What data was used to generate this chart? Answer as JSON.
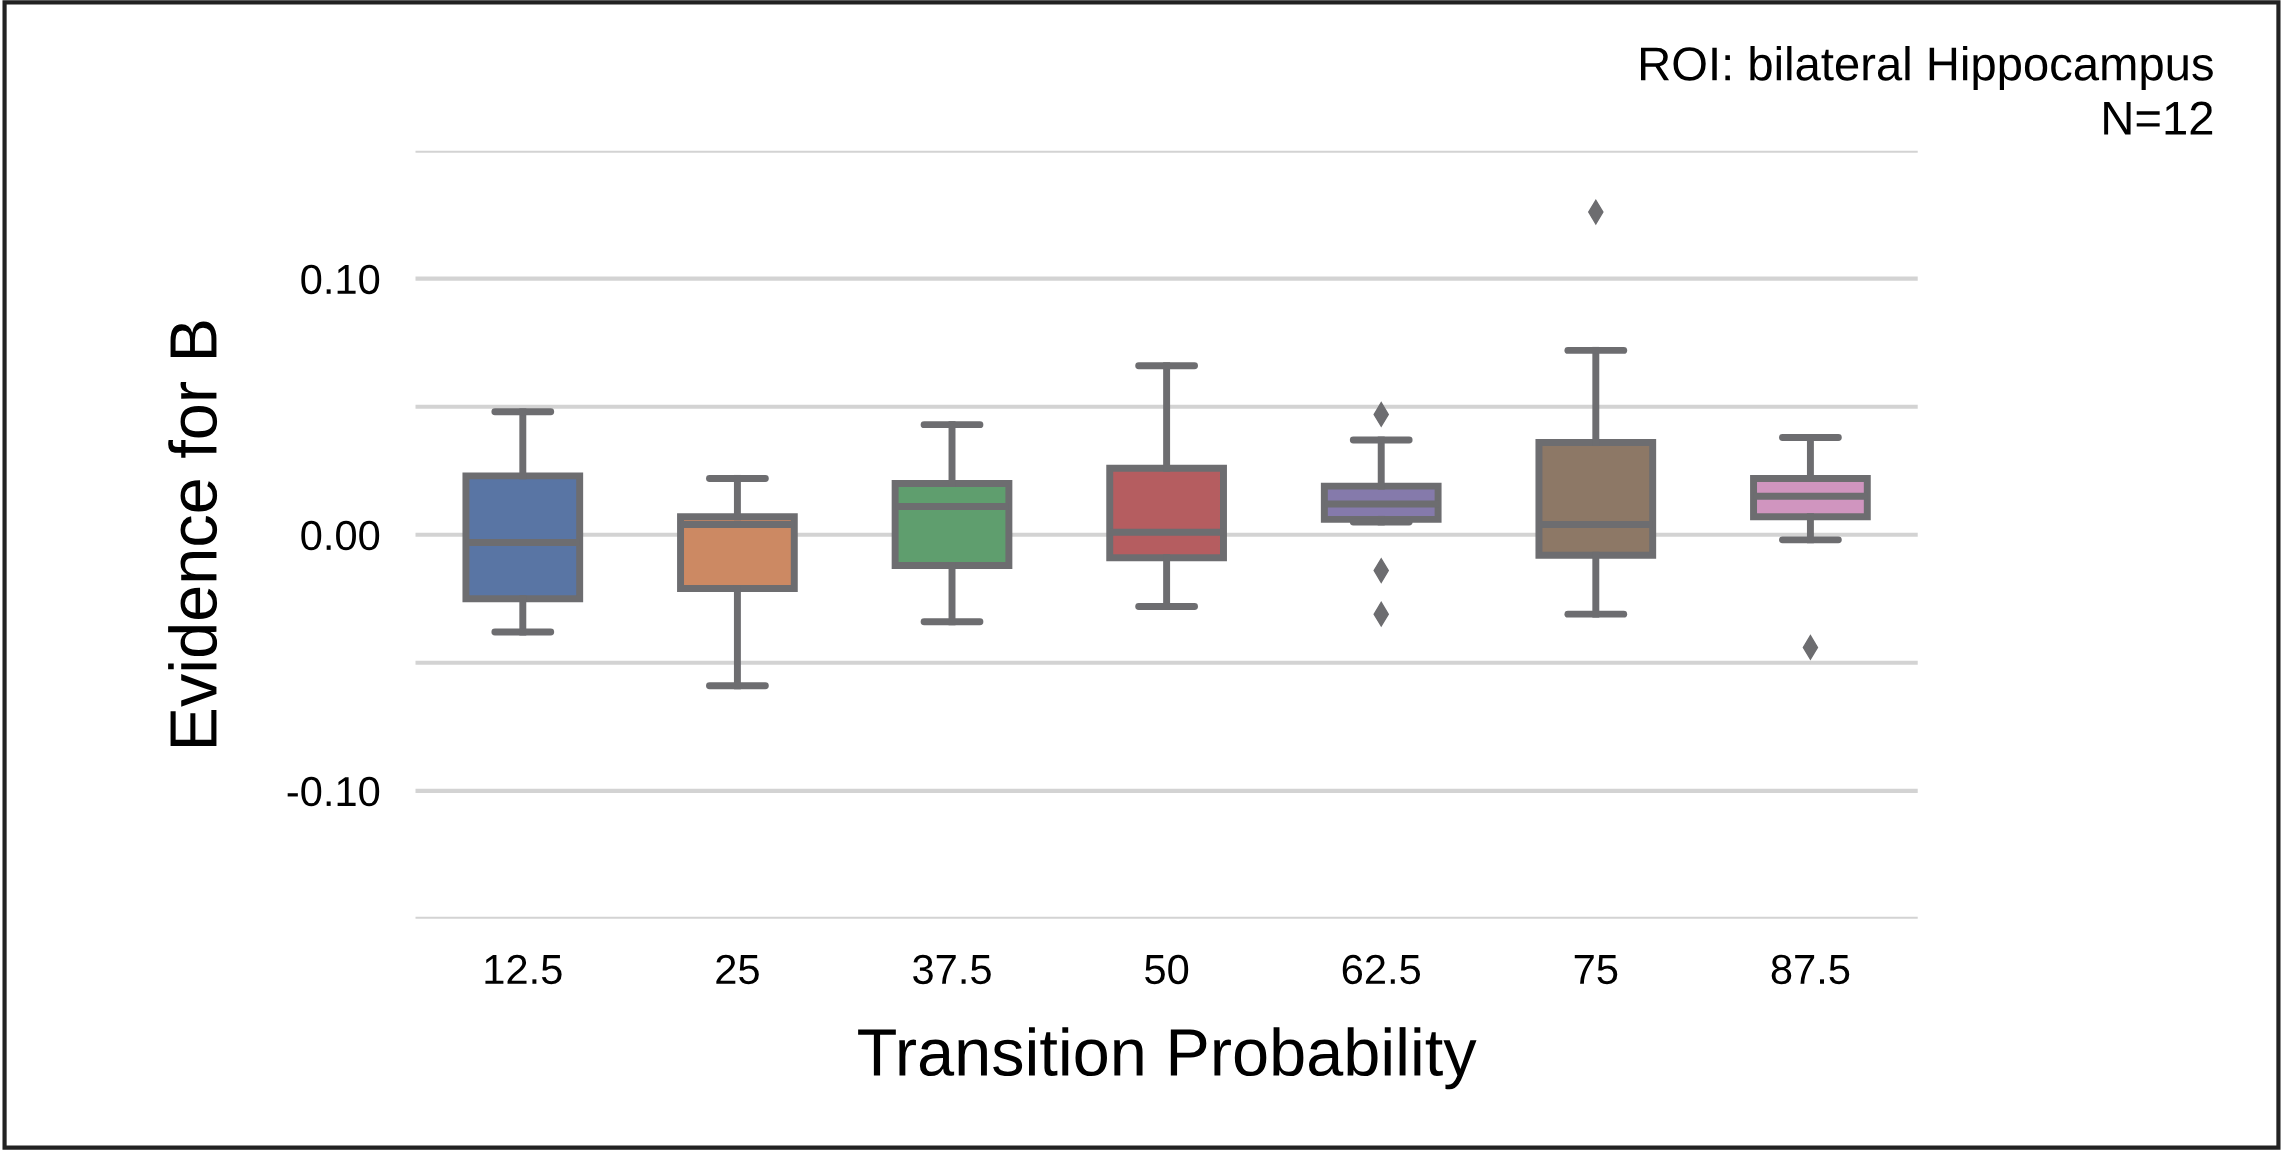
{
  "chart_data": {
    "type": "box",
    "xlabel": "Transition Probability",
    "ylabel": "Evidence for B",
    "annotations": [
      "ROI: bilateral Hippocampus\nN=12"
    ],
    "categories": [
      "12.5",
      "25",
      "37.5",
      "50",
      "62.5",
      "75",
      "87.5"
    ],
    "colors": [
      "#5975a4",
      "#cc8963",
      "#5f9e6e",
      "#b55d60",
      "#857aab",
      "#8d7866",
      "#d095bf"
    ],
    "boxes": [
      {
        "low": -0.038,
        "q1": -0.025,
        "median": -0.003,
        "q3": 0.023,
        "high": 0.048
      },
      {
        "low": -0.059,
        "q1": -0.021,
        "median": 0.004,
        "q3": 0.007,
        "high": 0.022
      },
      {
        "low": -0.034,
        "q1": -0.012,
        "median": 0.011,
        "q3": 0.02,
        "high": 0.043
      },
      {
        "low": -0.028,
        "q1": -0.009,
        "median": 0.001,
        "q3": 0.026,
        "high": 0.066
      },
      {
        "low": 0.005,
        "q1": 0.006,
        "median": 0.012,
        "q3": 0.019,
        "high": 0.037,
        "outliers": [
          0.047,
          -0.014,
          -0.031
        ]
      },
      {
        "low": -0.031,
        "q1": -0.008,
        "median": 0.004,
        "q3": 0.036,
        "high": 0.072,
        "outliers": [
          0.126
        ]
      },
      {
        "low": -0.002,
        "q1": 0.007,
        "median": 0.015,
        "q3": 0.022,
        "high": 0.038,
        "outliers": [
          -0.044
        ]
      }
    ],
    "ylim": [
      -0.15,
      0.15
    ],
    "yticks": [
      {
        "value": -0.15,
        "label": null
      },
      {
        "value": -0.1,
        "label": "-0.10"
      },
      {
        "value": -0.05,
        "label": null
      },
      {
        "value": 0.0,
        "label": "0.00"
      },
      {
        "value": 0.05,
        "label": null
      },
      {
        "value": 0.1,
        "label": "0.10"
      },
      {
        "value": 0.15,
        "label": null
      }
    ],
    "grid": "y"
  }
}
